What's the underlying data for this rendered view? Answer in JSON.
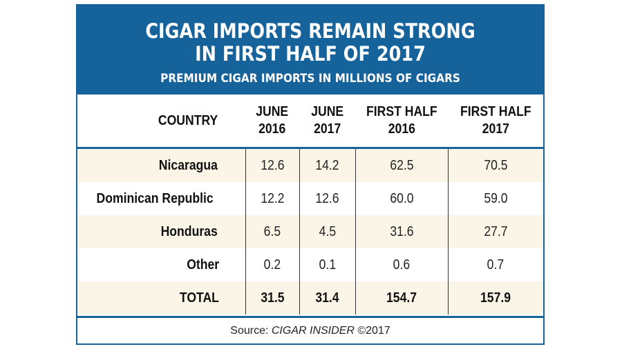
{
  "title_line1": "CIGAR IMPORTS REMAIN STRONG",
  "title_line2": "IN FIRST HALF OF 2017",
  "subtitle": "PREMIUM CIGAR IMPORTS IN MILLIONS OF CIGARS",
  "colors": {
    "header_blue": "#16629b",
    "row_cream": "#faf5e6"
  },
  "chart_data": {
    "type": "table",
    "columns": [
      {
        "line1": "COUNTRY",
        "line2": ""
      },
      {
        "line1": "JUNE",
        "line2": "2016"
      },
      {
        "line1": "JUNE",
        "line2": "2017"
      },
      {
        "line1": "FIRST HALF",
        "line2": "2016"
      },
      {
        "line1": "FIRST HALF",
        "line2": "2017"
      }
    ],
    "rows": [
      [
        "Nicaragua",
        "12.6",
        "14.2",
        "62.5",
        "70.5"
      ],
      [
        "Dominican Republic",
        "12.2",
        "12.6",
        "60.0",
        "59.0"
      ],
      [
        "Honduras",
        "6.5",
        "4.5",
        "31.6",
        "27.7"
      ],
      [
        "Other",
        "0.2",
        "0.1",
        "0.6",
        "0.7"
      ],
      [
        "TOTAL",
        "31.5",
        "31.4",
        "154.7",
        "157.9"
      ]
    ]
  },
  "footer": {
    "prefix": "Source: ",
    "publication": "CIGAR INSIDER",
    "suffix": " ©2017"
  }
}
